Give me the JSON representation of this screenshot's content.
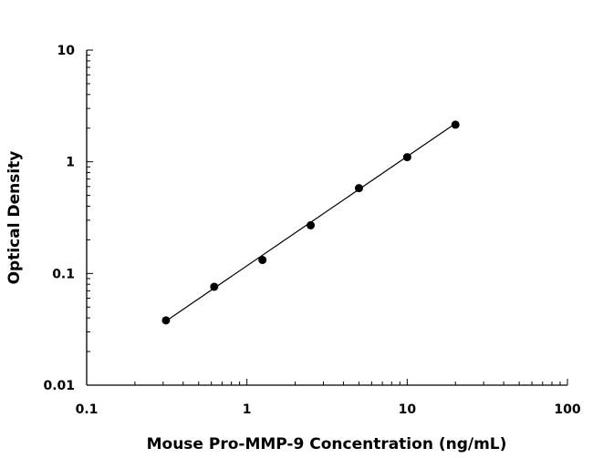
{
  "chart_data": {
    "type": "scatter",
    "xlabel": "Mouse Pro-MMP-9 Concentration (ng/mL)",
    "ylabel": "Optical Density",
    "x_scale": "log",
    "y_scale": "log",
    "xlim": [
      0.1,
      100
    ],
    "ylim": [
      0.01,
      10
    ],
    "x_ticks": [
      "0.1",
      "1",
      "10",
      "100"
    ],
    "y_ticks": [
      "0.01",
      "0.1",
      "1",
      "10"
    ],
    "grid": false,
    "legend": "none",
    "series": [
      {
        "x": [
          0.3125,
          0.625,
          1.25,
          2.5,
          5,
          10,
          20
        ],
        "y": [
          0.038,
          0.076,
          0.132,
          0.27,
          0.58,
          1.1,
          2.15
        ]
      }
    ],
    "fit_line": {
      "x": [
        0.3125,
        20
      ],
      "y": [
        0.0375,
        2.2
      ]
    }
  }
}
